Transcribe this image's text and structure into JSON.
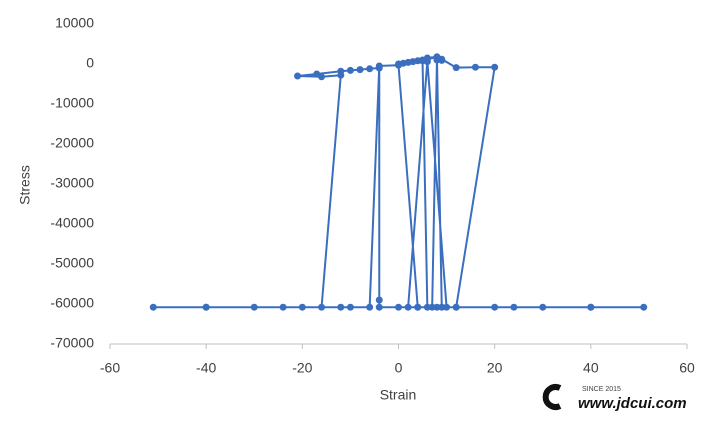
{
  "chart_data": {
    "type": "scatter-line",
    "x_label": "Strain",
    "y_label": "Stress",
    "xlim": [
      -60,
      60
    ],
    "xticks": [
      -60,
      -40,
      -20,
      0,
      20,
      40,
      60
    ],
    "ylim": [
      -70000,
      10000
    ],
    "yticks": [
      -70000,
      -60000,
      -50000,
      -40000,
      -30000,
      -20000,
      -10000,
      0,
      10000
    ],
    "grid": false,
    "series": [
      {
        "color": "#3a6fc0",
        "x": [
          0,
          1,
          2,
          3,
          4,
          5,
          6,
          8,
          9,
          12,
          16,
          20,
          12,
          8,
          4,
          0,
          -4,
          -4,
          -4,
          -6,
          -8,
          -10,
          -12,
          -17,
          -21,
          -16,
          -12,
          -16,
          -24,
          -30,
          -40,
          -51,
          -40,
          -20,
          -12,
          -10,
          -6,
          -4,
          0,
          4,
          2,
          6,
          10,
          20,
          30,
          40,
          51,
          40,
          24,
          12,
          7,
          8,
          9,
          6,
          5,
          6,
          8,
          9
        ],
        "values": [
          0,
          200,
          400,
          600,
          800,
          1000,
          1200,
          1700,
          1200,
          -900,
          -800,
          -800,
          -60800,
          -60800,
          -60800,
          -60800,
          -60800,
          -59000,
          -1000,
          -1200,
          -1400,
          -1600,
          -1800,
          -2500,
          -3000,
          -3200,
          -2800,
          -60800,
          -60800,
          -60800,
          -60800,
          -60800,
          -60800,
          -60800,
          -60800,
          -60800,
          -60800,
          -500,
          -300,
          -60800,
          -60800,
          600,
          -60800,
          -60800,
          -60800,
          -60800,
          -60800,
          -60800,
          -60800,
          -60800,
          -60800,
          1000,
          -60800,
          -60800,
          800,
          1500,
          1800,
          900
        ]
      }
    ]
  },
  "watermark": {
    "since": "SINCE 2015",
    "url": "www.jdcui.com"
  }
}
